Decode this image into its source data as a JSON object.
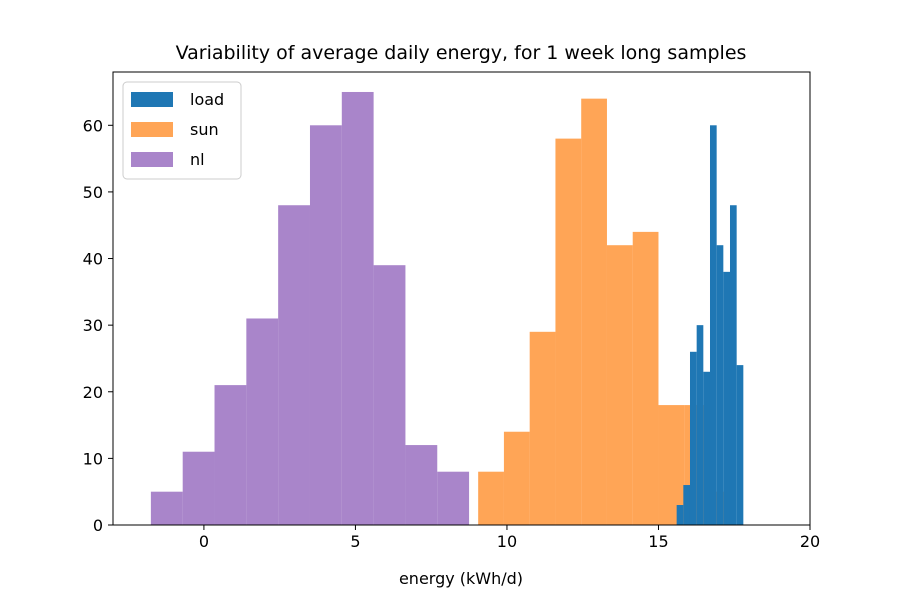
{
  "chart_data": {
    "type": "bar",
    "title": "Variability of average daily energy, for 1 week long samples",
    "xlabel": "energy (kWh/d)",
    "ylabel": "",
    "xlim": [
      -3,
      20
    ],
    "ylim": [
      0,
      68
    ],
    "xticks": [
      0,
      5,
      10,
      15,
      20
    ],
    "yticks": [
      0,
      10,
      20,
      30,
      40,
      50,
      60
    ],
    "grid": false,
    "legend": {
      "position": "top-left",
      "entries": [
        "load",
        "sun",
        "nl"
      ]
    },
    "series": [
      {
        "name": "nl",
        "color": "#9467bd",
        "opacity": 0.8,
        "bins": [
          [
            -1.75,
            -0.7,
            5
          ],
          [
            -0.7,
            0.35,
            11
          ],
          [
            0.35,
            1.4,
            21
          ],
          [
            1.4,
            2.45,
            31
          ],
          [
            2.45,
            3.5,
            48
          ],
          [
            3.5,
            4.55,
            60
          ],
          [
            4.55,
            5.6,
            65
          ],
          [
            5.6,
            6.65,
            39
          ],
          [
            6.65,
            7.7,
            12
          ],
          [
            7.7,
            8.75,
            8
          ]
        ]
      },
      {
        "name": "sun",
        "color": "#ff7f0e",
        "opacity": 0.7,
        "bins": [
          [
            9.05,
            9.9,
            8
          ],
          [
            9.9,
            10.75,
            14
          ],
          [
            10.75,
            11.6,
            29
          ],
          [
            11.6,
            12.45,
            58
          ],
          [
            12.45,
            13.3,
            64
          ],
          [
            13.3,
            14.15,
            42
          ],
          [
            14.15,
            15.0,
            44
          ],
          [
            15.0,
            15.85,
            18
          ],
          [
            15.85,
            16.7,
            18
          ],
          [
            16.7,
            17.55,
            5
          ]
        ]
      },
      {
        "name": "load",
        "color": "#1f77b4",
        "opacity": 1.0,
        "bins": [
          [
            15.6,
            15.82,
            3
          ],
          [
            15.82,
            16.04,
            6
          ],
          [
            16.04,
            16.26,
            26
          ],
          [
            16.26,
            16.48,
            30
          ],
          [
            16.48,
            16.7,
            23
          ],
          [
            16.7,
            16.92,
            60
          ],
          [
            16.92,
            17.14,
            42
          ],
          [
            17.14,
            17.36,
            38
          ],
          [
            17.36,
            17.58,
            48
          ],
          [
            17.58,
            17.8,
            24
          ]
        ]
      }
    ]
  }
}
